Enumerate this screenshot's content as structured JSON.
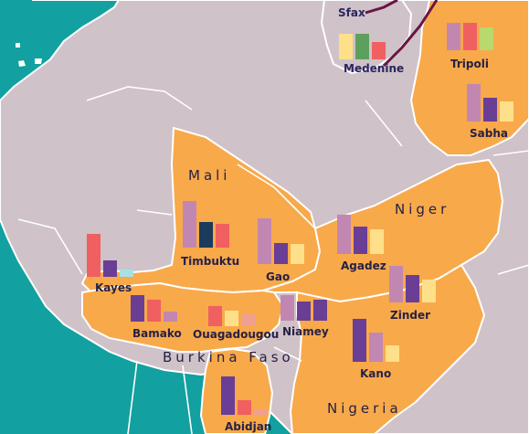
{
  "map": {
    "colors": {
      "sea": "#12a0a0",
      "land": "#cfc2c8",
      "highlight": "#f8a94a",
      "border": "#ffffff",
      "route": "#6a1445"
    },
    "countries": [
      {
        "id": "mali",
        "name": "Mali"
      },
      {
        "id": "niger",
        "name": "Niger"
      },
      {
        "id": "burkina",
        "name": "Burkina Faso"
      },
      {
        "id": "nigeria",
        "name": "Nigeria"
      }
    ]
  },
  "legend_colors": {
    "pink": "#c287b1",
    "navy": "#1b3a5c",
    "red": "#f06060",
    "purple": "#6a3e95",
    "yellow": "#ffe08a",
    "green": "#5da05d",
    "lime": "#b8d96e",
    "cyan": "#a7e1e1",
    "salmon": "#f0a090"
  },
  "cities": [
    {
      "id": "sfax",
      "name": "Sfax",
      "values": []
    },
    {
      "id": "medenine",
      "name": "Medenine",
      "values": [
        {
          "color": "yellow",
          "value": 28
        },
        {
          "color": "green",
          "value": 28
        },
        {
          "color": "red",
          "value": 19
        }
      ]
    },
    {
      "id": "tripoli",
      "name": "Tripoli",
      "values": [
        {
          "color": "pink",
          "value": 30
        },
        {
          "color": "red",
          "value": 30
        },
        {
          "color": "lime",
          "value": 25
        }
      ]
    },
    {
      "id": "sabha",
      "name": "Sabha",
      "values": [
        {
          "color": "pink",
          "value": 41
        },
        {
          "color": "purple",
          "value": 26
        },
        {
          "color": "yellow",
          "value": 22
        }
      ]
    },
    {
      "id": "timbuktu",
      "name": "Timbuktu",
      "values": [
        {
          "color": "pink",
          "value": 51
        },
        {
          "color": "navy",
          "value": 28
        },
        {
          "color": "red",
          "value": 26
        }
      ]
    },
    {
      "id": "gao",
      "name": "Gao",
      "values": [
        {
          "color": "pink",
          "value": 50
        },
        {
          "color": "purple",
          "value": 23
        },
        {
          "color": "yellow",
          "value": 22
        }
      ]
    },
    {
      "id": "agadez",
      "name": "Agadez",
      "values": [
        {
          "color": "pink",
          "value": 43
        },
        {
          "color": "purple",
          "value": 30
        },
        {
          "color": "yellow",
          "value": 27
        }
      ]
    },
    {
      "id": "zinder",
      "name": "Zinder",
      "values": [
        {
          "color": "pink",
          "value": 40
        },
        {
          "color": "purple",
          "value": 30
        },
        {
          "color": "yellow",
          "value": 25
        }
      ]
    },
    {
      "id": "kayes",
      "name": "Kayes",
      "values": [
        {
          "color": "red",
          "value": 47
        },
        {
          "color": "purple",
          "value": 18
        },
        {
          "color": "cyan",
          "value": 8
        }
      ]
    },
    {
      "id": "bamako",
      "name": "Bamako",
      "values": [
        {
          "color": "purple",
          "value": 29
        },
        {
          "color": "red",
          "value": 24
        },
        {
          "color": "pink",
          "value": 11
        }
      ]
    },
    {
      "id": "ouagadougou",
      "name": "Ouagadougou",
      "values": [
        {
          "color": "red",
          "value": 22
        },
        {
          "color": "yellow",
          "value": 17
        },
        {
          "color": "salmon",
          "value": 13
        }
      ]
    },
    {
      "id": "niamey",
      "name": "Niamey",
      "values": [
        {
          "color": "pink",
          "value": 28
        },
        {
          "color": "purple",
          "value": 21
        },
        {
          "color": "purple",
          "value": 23
        }
      ]
    },
    {
      "id": "kano",
      "name": "Kano",
      "values": [
        {
          "color": "purple",
          "value": 47
        },
        {
          "color": "pink",
          "value": 32
        },
        {
          "color": "yellow",
          "value": 18
        }
      ]
    },
    {
      "id": "abidjan",
      "name": "Abidjan",
      "values": [
        {
          "color": "purple",
          "value": 42
        },
        {
          "color": "red",
          "value": 16
        },
        {
          "color": "salmon",
          "value": 6
        }
      ]
    }
  ]
}
